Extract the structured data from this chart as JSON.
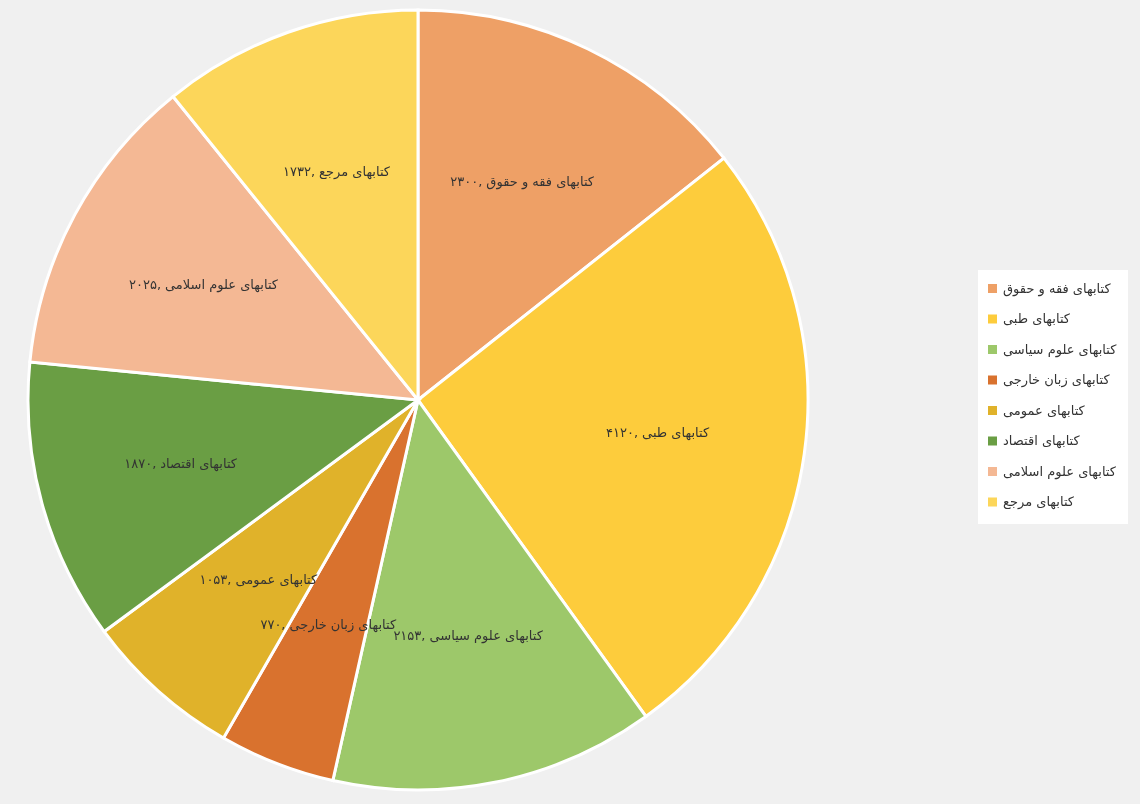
{
  "chart_data": {
    "type": "pie",
    "categories": [
      "کتابهای فقه و حقوق",
      "کتابهای طبی",
      "کتابهای علوم سیاسی",
      "کتابهای زبان خارجی",
      "کتابهای عمومی",
      "کتابهای اقتصاد",
      "کتابهای علوم اسلامی",
      "کتابهای مرجع"
    ],
    "values": [
      2300,
      4120,
      2153,
      770,
      1053,
      1870,
      2025,
      1732
    ],
    "value_labels": [
      "۲۳۰۰,",
      "۴۱۲۰,",
      "۲۱۵۳,",
      "۷۷۰,",
      "۱۰۵۳,",
      "۱۸۷۰,",
      "۲۰۲۵,",
      "۱۷۳۲,"
    ],
    "colors": [
      "#eea066",
      "#fdcc3c",
      "#9dc86a",
      "#d9722e",
      "#e0b22a",
      "#6a9e44",
      "#f4b894",
      "#fcd65a"
    ],
    "legend": "right"
  }
}
